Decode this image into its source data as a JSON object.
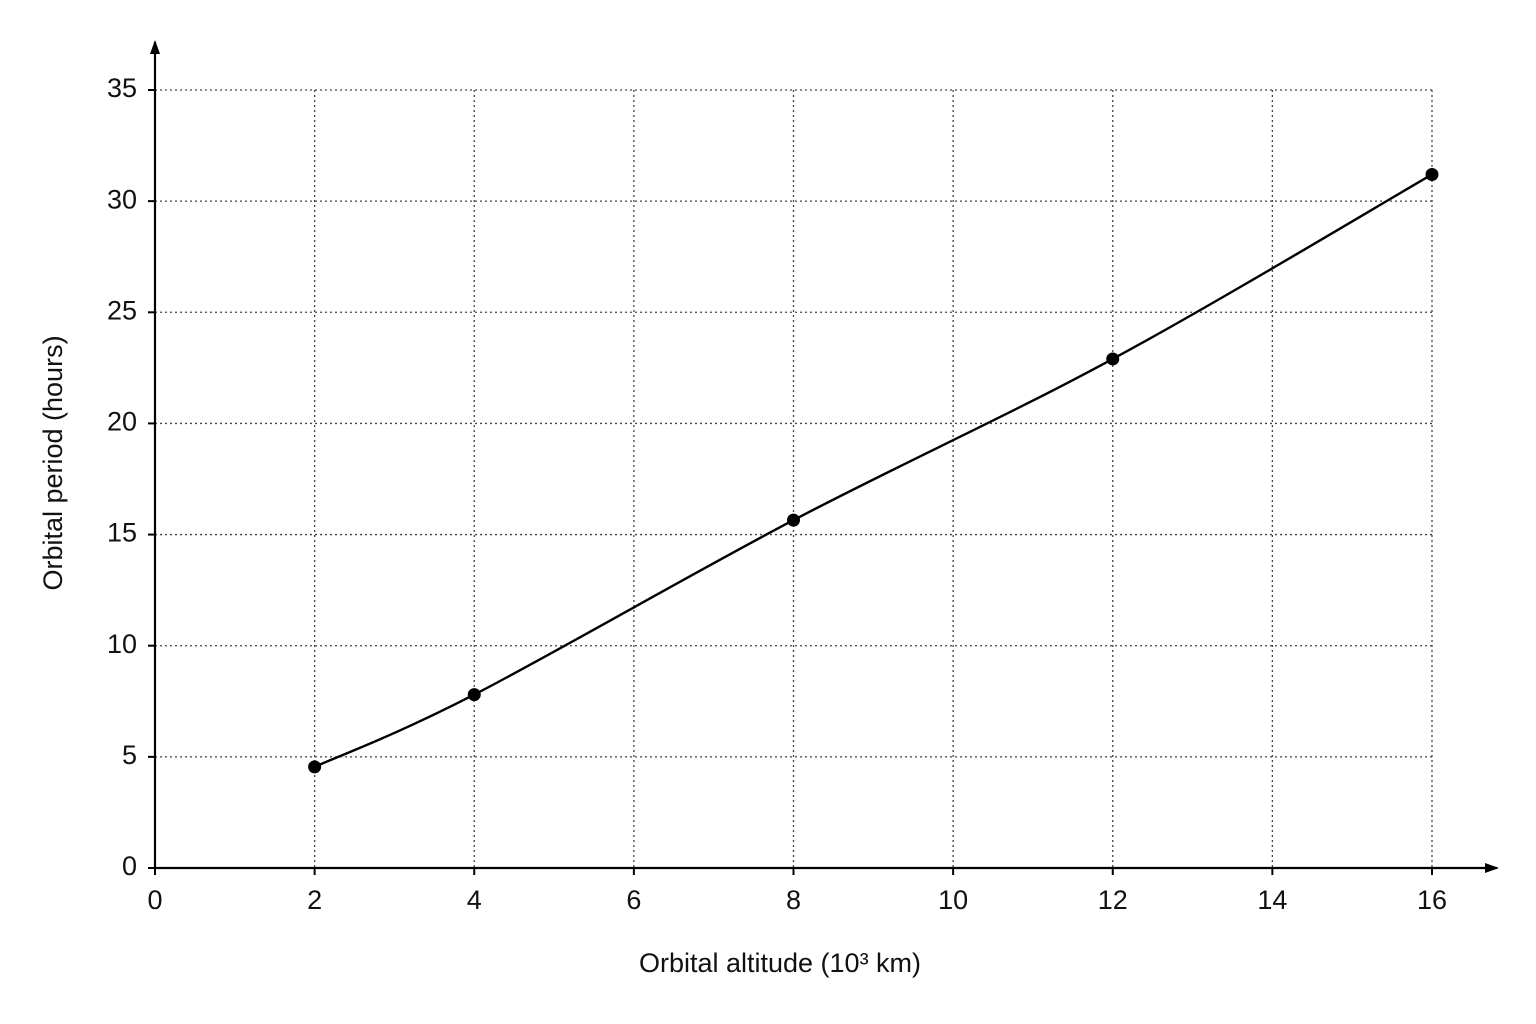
{
  "chart_data": {
    "type": "line",
    "x_label": "Orbital altitude (10³ km)",
    "y_label": "Orbital period (hours)",
    "x": [
      2,
      4,
      8,
      12,
      16
    ],
    "series": [
      {
        "name": "Orbital period",
        "color": "#000000",
        "values": [
          4.55,
          7.8,
          15.65,
          22.9,
          31.2
        ]
      }
    ],
    "xlim": [
      0,
      16
    ],
    "ylim": [
      0,
      35
    ],
    "xticks": [
      0,
      2,
      4,
      6,
      8,
      10,
      12,
      14,
      16
    ],
    "yticks": [
      0,
      5,
      10,
      15,
      20,
      25,
      30,
      35
    ],
    "grid": true
  }
}
